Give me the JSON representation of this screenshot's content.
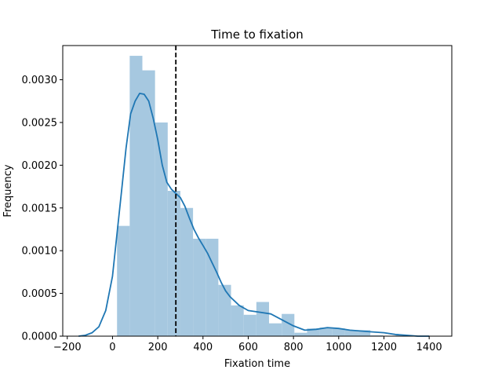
{
  "chart_data": {
    "type": "bar",
    "title": "Time to fixation",
    "xlabel": "Fixation time",
    "ylabel": "Frequency",
    "xlim": [
      -220,
      1500
    ],
    "ylim": [
      0,
      0.0034
    ],
    "xticks": [
      -200,
      0,
      200,
      400,
      600,
      800,
      1000,
      1200,
      1400
    ],
    "xtick_labels": [
      "−200",
      "0",
      "200",
      "400",
      "600",
      "800",
      "1000",
      "1200",
      "1400"
    ],
    "yticks": [
      0,
      0.0005,
      0.001,
      0.0015,
      0.002,
      0.0025,
      0.003
    ],
    "ytick_labels": [
      "0.0000",
      "0.0005",
      "0.0010",
      "0.0015",
      "0.0020",
      "0.0025",
      "0.0030"
    ],
    "grid": false,
    "histogram": {
      "bin_start": 20,
      "bin_width": 56,
      "values": [
        0.00129,
        0.00328,
        0.00311,
        0.0025,
        0.0017,
        0.0015,
        0.00114,
        0.00114,
        0.0006,
        0.00036,
        0.00025,
        0.0004,
        0.00015,
        0.00026,
        4e-05,
        9e-05,
        0.0001,
        9e-05,
        7e-05,
        7e-05,
        1e-05,
        0.0,
        1e-05
      ],
      "color": "#a6c8e0"
    },
    "kde": {
      "x": [
        -150,
        -120,
        -90,
        -60,
        -30,
        0,
        20,
        40,
        60,
        80,
        100,
        120,
        140,
        160,
        180,
        200,
        220,
        240,
        260,
        280,
        300,
        320,
        340,
        360,
        380,
        400,
        420,
        440,
        460,
        480,
        500,
        520,
        560,
        600,
        650,
        700,
        750,
        800,
        850,
        900,
        950,
        1000,
        1050,
        1100,
        1150,
        1200,
        1250,
        1300,
        1350,
        1400
      ],
      "y": [
        0.0,
        1e-05,
        4e-05,
        0.00011,
        0.0003,
        0.0007,
        0.0012,
        0.0017,
        0.0022,
        0.0026,
        0.00275,
        0.00284,
        0.00283,
        0.00275,
        0.00255,
        0.0023,
        0.002,
        0.0018,
        0.00172,
        0.00167,
        0.00162,
        0.00152,
        0.00138,
        0.00125,
        0.00115,
        0.00106,
        0.00097,
        0.00086,
        0.00075,
        0.00063,
        0.00053,
        0.00046,
        0.00036,
        0.0003,
        0.00028,
        0.00026,
        0.00019,
        0.00012,
        7e-05,
        8e-05,
        0.0001,
        9e-05,
        7e-05,
        6e-05,
        5e-05,
        4e-05,
        2e-05,
        1e-05,
        0.0,
        0.0
      ],
      "color": "#1f77b4"
    },
    "mean_line": {
      "x": 280,
      "color": "#000000",
      "style": "dashed"
    }
  }
}
